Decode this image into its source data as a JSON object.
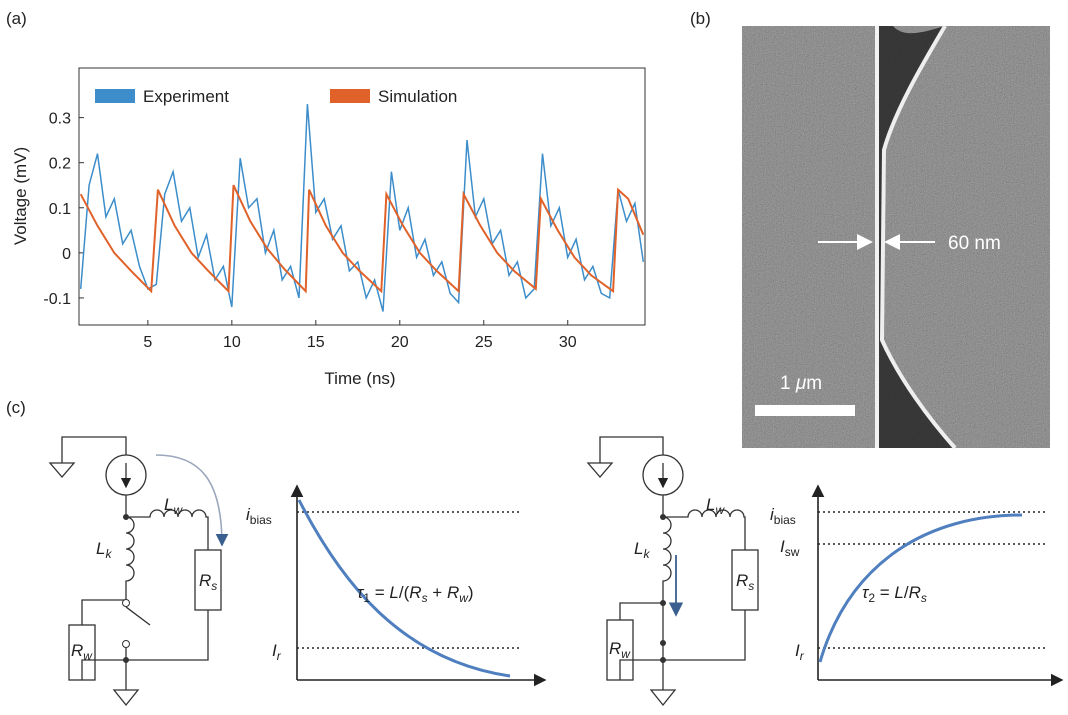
{
  "panel_labels": [
    "(a)",
    "(b)",
    "(c)"
  ],
  "chart_data": {
    "type": "line",
    "xlabel": "Time (ns)",
    "ylabel": "Voltage (mV)",
    "xlim": [
      0.9,
      34.6
    ],
    "ylim": [
      -0.16,
      0.41
    ],
    "xticks": [
      5,
      10,
      15,
      20,
      25,
      30
    ],
    "yticks": [
      -0.1,
      0,
      0.1,
      0.2,
      0.3
    ],
    "series": [
      {
        "name": "Experiment",
        "color": "#3c8dca",
        "x": [
          1.0,
          1.5,
          2.0,
          2.5,
          3.0,
          3.5,
          4.0,
          4.5,
          5.0,
          5.5,
          6.0,
          6.5,
          7.0,
          7.5,
          8.0,
          8.5,
          9.0,
          9.5,
          10.0,
          10.5,
          11.0,
          11.5,
          12.0,
          12.5,
          13.0,
          13.5,
          14.0,
          14.5,
          15.0,
          15.5,
          16.0,
          16.5,
          17.0,
          17.5,
          18.0,
          18.5,
          19.0,
          19.5,
          20.0,
          20.5,
          21.0,
          21.5,
          22.0,
          22.5,
          23.0,
          23.5,
          24.0,
          24.5,
          25.0,
          25.5,
          26.0,
          26.5,
          27.0,
          27.5,
          28.0,
          28.5,
          29.0,
          29.5,
          30.0,
          30.5,
          31.0,
          31.5,
          32.0,
          32.5,
          33.0,
          33.5,
          34.0,
          34.5
        ],
        "values": [
          -0.08,
          0.15,
          0.22,
          0.08,
          0.12,
          0.02,
          0.05,
          -0.03,
          -0.08,
          -0.07,
          0.13,
          0.18,
          0.07,
          0.1,
          -0.01,
          0.04,
          -0.06,
          -0.03,
          -0.12,
          0.21,
          0.1,
          0.12,
          0.0,
          0.05,
          -0.06,
          -0.03,
          -0.1,
          0.33,
          0.09,
          0.12,
          0.03,
          0.06,
          -0.04,
          -0.02,
          -0.1,
          -0.06,
          -0.13,
          0.18,
          0.05,
          0.1,
          -0.01,
          0.03,
          -0.05,
          -0.02,
          -0.09,
          -0.11,
          0.25,
          0.08,
          0.12,
          0.02,
          0.05,
          -0.05,
          -0.02,
          -0.1,
          -0.08,
          0.22,
          0.06,
          0.1,
          -0.01,
          0.03,
          -0.06,
          -0.03,
          -0.09,
          -0.1,
          0.14,
          0.07,
          0.11,
          -0.02
        ]
      },
      {
        "name": "Simulation",
        "color": "#e0622a",
        "x": [
          1.0,
          2.0,
          3.0,
          4.0,
          5.2,
          5.6,
          6.6,
          7.6,
          8.6,
          9.8,
          10.1,
          11.1,
          12.1,
          13.1,
          14.4,
          14.6,
          15.6,
          16.6,
          17.6,
          18.9,
          19.2,
          20.2,
          21.2,
          22.2,
          23.5,
          23.8,
          24.8,
          25.8,
          26.8,
          28.1,
          28.4,
          29.4,
          30.4,
          31.4,
          32.7,
          33.0,
          33.6,
          34.5
        ],
        "values": [
          0.13,
          0.06,
          0.0,
          -0.04,
          -0.085,
          0.14,
          0.06,
          0.0,
          -0.04,
          -0.085,
          0.15,
          0.07,
          0.01,
          -0.035,
          -0.085,
          0.14,
          0.06,
          0.0,
          -0.04,
          -0.085,
          0.13,
          0.06,
          0.0,
          -0.04,
          -0.085,
          0.13,
          0.06,
          0.0,
          -0.04,
          -0.08,
          0.12,
          0.05,
          -0.01,
          -0.05,
          -0.085,
          0.14,
          0.12,
          0.04
        ]
      }
    ]
  },
  "sem": {
    "gap_label": "60 nm",
    "scale_label": [
      "1 ",
      "μ",
      "m"
    ]
  },
  "circuits": [
    {
      "Lk": [
        "L",
        "k"
      ],
      "Lw": [
        "L",
        "w"
      ],
      "Rs": [
        "R",
        "s"
      ],
      "Rw": [
        "R",
        "w"
      ],
      "levels": [
        [
          "i",
          "bias"
        ],
        [
          "I",
          "r"
        ]
      ],
      "equation": [
        "τ",
        "1",
        " = ",
        "L",
        "/(",
        "R",
        "s",
        " + ",
        "R",
        "w",
        ")"
      ]
    },
    {
      "Lk": [
        "L",
        "k"
      ],
      "Lw": [
        "L",
        "w"
      ],
      "Rs": [
        "R",
        "s"
      ],
      "Rw": [
        "R",
        "w"
      ],
      "levels": [
        [
          "i",
          "bias"
        ],
        [
          "I",
          "sw"
        ],
        [
          "I",
          "r"
        ]
      ],
      "equation": [
        "τ",
        "2",
        " = ",
        "L",
        "/",
        "R",
        "s"
      ]
    }
  ]
}
